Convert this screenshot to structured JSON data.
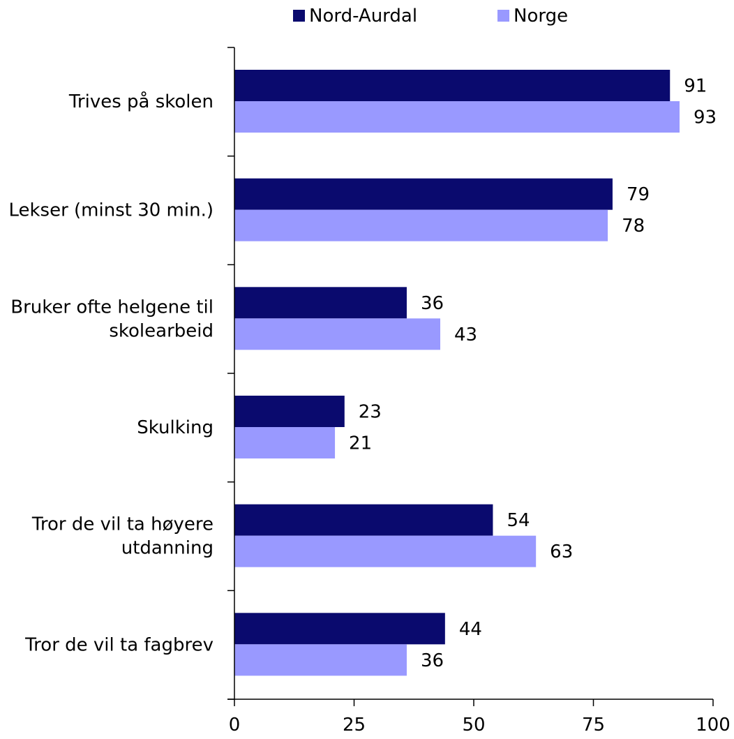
{
  "chart_data": {
    "type": "bar",
    "orientation": "horizontal",
    "title": "",
    "xlabel": "",
    "ylabel": "",
    "xlim": [
      0,
      100
    ],
    "x_ticks": [
      0,
      25,
      50,
      75,
      100
    ],
    "grid": false,
    "legend_position": "top",
    "categories": [
      [
        "Trives på skolen"
      ],
      [
        "Lekser (minst 30 min.)"
      ],
      [
        "Bruker ofte helgene til",
        "skolearbeid"
      ],
      [
        "Skulking"
      ],
      [
        "Tror de vil ta høyere",
        "utdanning"
      ],
      [
        "Tror de vil ta fagbrev"
      ]
    ],
    "series": [
      {
        "name": "Nord-Aurdal",
        "color": "#0a0a6e",
        "values": [
          91,
          79,
          36,
          23,
          54,
          44
        ]
      },
      {
        "name": "Norge",
        "color": "#9999ff",
        "values": [
          93,
          78,
          43,
          21,
          63,
          36
        ]
      }
    ]
  }
}
